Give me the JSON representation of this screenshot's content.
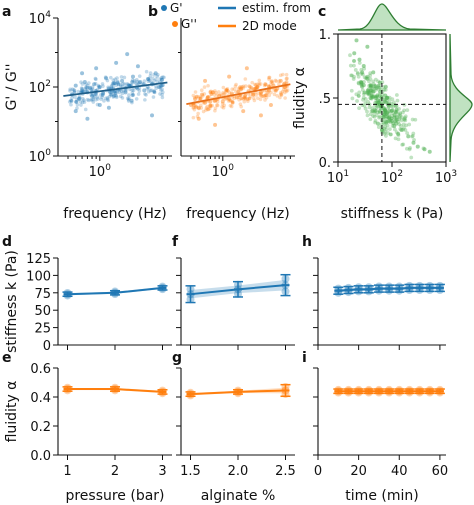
{
  "chart_data": [
    {
      "panel": "a",
      "type": "scatter",
      "xlabel": "frequency (Hz)",
      "ylabel": "G' / G''",
      "xscale": "log",
      "yscale": "log",
      "xlim": [
        0.3,
        8
      ],
      "ylim": [
        1,
        10000
      ],
      "x_ticks": [
        {
          "value": 1,
          "label": "10^0"
        }
      ],
      "y_ticks": [
        {
          "value": 1,
          "label": "10^0"
        },
        {
          "value": 100,
          "label": "10^2"
        },
        {
          "value": 10000,
          "label": "10^4"
        }
      ],
      "series": [
        {
          "name": "G'",
          "color": "#1f77b4",
          "points": [
            [
              0.45,
              60
            ],
            [
              0.5,
              110
            ],
            [
              0.55,
              45
            ],
            [
              0.6,
              80
            ],
            [
              0.65,
              140
            ],
            [
              0.7,
              70
            ],
            [
              0.75,
              95
            ],
            [
              0.8,
              55
            ],
            [
              0.85,
              120
            ],
            [
              0.9,
              75
            ],
            [
              1.0,
              100
            ],
            [
              1.1,
              65
            ],
            [
              1.2,
              180
            ],
            [
              1.3,
              90
            ],
            [
              1.4,
              60
            ],
            [
              1.5,
              130
            ],
            [
              1.7,
              85
            ],
            [
              1.9,
              150
            ],
            [
              2.1,
              70
            ],
            [
              2.3,
              110
            ],
            [
              2.6,
              200
            ],
            [
              2.9,
              95
            ],
            [
              3.2,
              140
            ],
            [
              3.6,
              80
            ],
            [
              4.0,
              170
            ],
            [
              4.5,
              120
            ],
            [
              5.0,
              250
            ],
            [
              5.5,
              100
            ],
            [
              6.0,
              160
            ],
            [
              0.5,
              20
            ],
            [
              0.7,
              12
            ],
            [
              1.0,
              30
            ],
            [
              1.6,
              500
            ],
            [
              2.2,
              900
            ],
            [
              3.0,
              400
            ],
            [
              0.9,
              350
            ],
            [
              4.5,
              15
            ],
            [
              0.6,
              250
            ],
            [
              2.5,
              40
            ],
            [
              1.3,
              25
            ]
          ]
        }
      ],
      "fit": {
        "label": "estim. from 2D mode",
        "color": "#1f5f8a",
        "x": [
          0.35,
          7
        ],
        "y": [
          55,
          135
        ]
      }
    },
    {
      "panel": "b",
      "type": "scatter",
      "xlabel": "frequency (Hz)",
      "xscale": "log",
      "yscale": "log",
      "xlim": [
        0.3,
        8
      ],
      "ylim": [
        1,
        10000
      ],
      "x_ticks": [
        {
          "value": 1,
          "label": "10^0"
        }
      ],
      "legend": [
        {
          "label": "G'",
          "color": "#1f77b4",
          "marker": "dot"
        },
        {
          "label": "G''",
          "color": "#ff7f0e",
          "marker": "dot"
        },
        {
          "label": "estim. from",
          "color": "#1f77b4",
          "marker": "line"
        },
        {
          "label": "2D mode",
          "color": "#ff7f0e",
          "marker": "line"
        }
      ],
      "series": [
        {
          "name": "G''",
          "color": "#ff7f0e",
          "points": [
            [
              0.4,
              30
            ],
            [
              0.45,
              45
            ],
            [
              0.5,
              25
            ],
            [
              0.55,
              60
            ],
            [
              0.6,
              35
            ],
            [
              0.65,
              50
            ],
            [
              0.7,
              28
            ],
            [
              0.75,
              70
            ],
            [
              0.8,
              40
            ],
            [
              0.9,
              55
            ],
            [
              1.0,
              38
            ],
            [
              1.1,
              80
            ],
            [
              1.2,
              45
            ],
            [
              1.3,
              65
            ],
            [
              1.5,
              50
            ],
            [
              1.7,
              90
            ],
            [
              1.9,
              55
            ],
            [
              2.1,
              75
            ],
            [
              2.4,
              60
            ],
            [
              2.7,
              100
            ],
            [
              3.0,
              70
            ],
            [
              3.4,
              120
            ],
            [
              3.8,
              80
            ],
            [
              4.3,
              110
            ],
            [
              4.8,
              90
            ],
            [
              5.3,
              150
            ],
            [
              6.0,
              100
            ],
            [
              0.5,
              12
            ],
            [
              0.8,
              8
            ],
            [
              1.2,
              200
            ],
            [
              2.0,
              350
            ],
            [
              3.0,
              15
            ],
            [
              0.6,
              150
            ],
            [
              4.0,
              30
            ],
            [
              1.8,
              20
            ]
          ]
        }
      ],
      "fit": {
        "label": "estim. from 2D mode",
        "color": "#e8701a",
        "x": [
          0.35,
          7
        ],
        "y": [
          32,
          120
        ]
      }
    },
    {
      "panel": "c",
      "type": "scatter",
      "xlabel": "stiffness k (Pa)",
      "ylabel": "fluidity α",
      "xscale": "log",
      "xlim": [
        10,
        1000
      ],
      "ylim": [
        0,
        1
      ],
      "x_ticks": [
        {
          "value": 10,
          "label": "10^1"
        },
        {
          "value": 100,
          "label": "10^2"
        },
        {
          "value": 1000,
          "label": "10^3"
        }
      ],
      "y_ticks": [
        {
          "value": 0,
          "label": "0."
        },
        {
          "value": 0.5,
          "label": ".5"
        },
        {
          "value": 1,
          "label": "1."
        }
      ],
      "mode": {
        "x": 65,
        "y": 0.45
      },
      "series": [
        {
          "name": "",
          "color": "#4caf50",
          "points": [
            [
              20,
              0.85
            ],
            [
              25,
              0.8
            ],
            [
              30,
              0.75
            ],
            [
              28,
              0.7
            ],
            [
              35,
              0.65
            ],
            [
              40,
              0.6
            ],
            [
              45,
              0.55
            ],
            [
              50,
              0.5
            ],
            [
              55,
              0.48
            ],
            [
              60,
              0.45
            ],
            [
              65,
              0.44
            ],
            [
              70,
              0.42
            ],
            [
              75,
              0.4
            ],
            [
              80,
              0.38
            ],
            [
              90,
              0.35
            ],
            [
              100,
              0.32
            ],
            [
              120,
              0.3
            ],
            [
              150,
              0.25
            ],
            [
              200,
              0.2
            ],
            [
              250,
              0.15
            ],
            [
              300,
              0.12
            ],
            [
              40,
              0.5
            ],
            [
              50,
              0.4
            ],
            [
              60,
              0.55
            ],
            [
              70,
              0.35
            ],
            [
              80,
              0.5
            ],
            [
              100,
              0.4
            ],
            [
              30,
              0.6
            ],
            [
              45,
              0.7
            ],
            [
              55,
              0.3
            ],
            [
              65,
              0.25
            ],
            [
              85,
              0.45
            ],
            [
              110,
              0.28
            ],
            [
              130,
              0.22
            ],
            [
              35,
              0.9
            ],
            [
              22,
              0.95
            ],
            [
              400,
              0.1
            ],
            [
              500,
              0.08
            ],
            [
              60,
              0.62
            ],
            [
              75,
              0.52
            ]
          ]
        }
      ]
    },
    {
      "panel": "d",
      "type": "line",
      "ylabel": "stiffness k (Pa)",
      "color": "#1f77b4",
      "ylim": [
        0,
        125
      ],
      "y_ticks": [
        0,
        25,
        50,
        75,
        100,
        125
      ],
      "x": [
        1,
        2,
        3
      ],
      "y": [
        73,
        75,
        82
      ],
      "err": [
        3,
        3,
        3
      ]
    },
    {
      "panel": "e",
      "type": "line",
      "xlabel": "pressure (bar)",
      "ylabel": "fluidity α",
      "color": "#ff7f0e",
      "ylim": [
        0,
        0.6
      ],
      "y_ticks": [
        0.0,
        0.2,
        0.4,
        0.6
      ],
      "x_ticks": [
        1,
        2,
        3
      ],
      "x": [
        1,
        2,
        3
      ],
      "y": [
        0.455,
        0.455,
        0.435
      ],
      "err": [
        0.015,
        0.015,
        0.015
      ]
    },
    {
      "panel": "f",
      "type": "line",
      "color": "#1f77b4",
      "ylim": [
        0,
        125
      ],
      "x": [
        1.5,
        2.0,
        2.5
      ],
      "y": [
        73,
        80,
        86
      ],
      "err": [
        12,
        11,
        15
      ]
    },
    {
      "panel": "g",
      "type": "line",
      "xlabel": "alginate %",
      "color": "#ff7f0e",
      "ylim": [
        0,
        0.6
      ],
      "x_ticks": [
        1.5,
        2.0,
        2.5
      ],
      "x": [
        1.5,
        2.0,
        2.5
      ],
      "y": [
        0.42,
        0.435,
        0.445
      ],
      "err": [
        0.015,
        0.015,
        0.04
      ]
    },
    {
      "panel": "h",
      "type": "line",
      "color": "#1f77b4",
      "ylim": [
        0,
        125
      ],
      "x": [
        10,
        15,
        20,
        25,
        30,
        35,
        40,
        45,
        50,
        55,
        60
      ],
      "y": [
        78,
        79,
        80,
        80,
        81,
        81,
        81,
        82,
        82,
        82,
        82
      ],
      "err": [
        5,
        5,
        5,
        5,
        5,
        5,
        5,
        5,
        5,
        5,
        5
      ]
    },
    {
      "panel": "i",
      "type": "line",
      "xlabel": "time (min)",
      "color": "#ff7f0e",
      "ylim": [
        0,
        0.6
      ],
      "x_ticks": [
        0,
        20,
        40,
        60
      ],
      "x": [
        10,
        15,
        20,
        25,
        30,
        35,
        40,
        45,
        50,
        55,
        60
      ],
      "y": [
        0.44,
        0.44,
        0.44,
        0.44,
        0.44,
        0.44,
        0.44,
        0.44,
        0.44,
        0.44,
        0.44
      ],
      "err": [
        0.015,
        0.015,
        0.015,
        0.015,
        0.015,
        0.015,
        0.015,
        0.015,
        0.015,
        0.015,
        0.015
      ]
    }
  ]
}
